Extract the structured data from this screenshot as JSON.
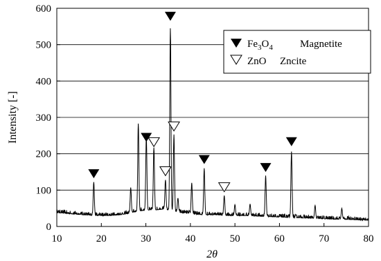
{
  "chart_data": {
    "type": "line",
    "xlabel": "2θ",
    "ylabel": "Intensity [-]",
    "xlim": [
      10,
      80
    ],
    "ylim": [
      0,
      600
    ],
    "x_ticks": [
      10,
      20,
      30,
      40,
      50,
      60,
      70,
      80
    ],
    "y_ticks": [
      0,
      100,
      200,
      300,
      400,
      500,
      600
    ],
    "grid": "horizontal",
    "legend_position": "top-right",
    "legend": [
      {
        "symbol": "filled-triangle-down",
        "name": "Fe3O4",
        "desc": "Magnetite"
      },
      {
        "symbol": "open-triangle-down",
        "name": "ZnO",
        "desc": "Zncite"
      }
    ],
    "series_color": "#000000",
    "baseline": [
      [
        10,
        38
      ],
      [
        12,
        36
      ],
      [
        14,
        34
      ],
      [
        16,
        32
      ],
      [
        18,
        30
      ],
      [
        20,
        30
      ],
      [
        22,
        30
      ],
      [
        24,
        32
      ],
      [
        26,
        35
      ],
      [
        28,
        42
      ],
      [
        30,
        45
      ],
      [
        32,
        45
      ],
      [
        34,
        48
      ],
      [
        36,
        42
      ],
      [
        38,
        38
      ],
      [
        40,
        35
      ],
      [
        42,
        33
      ],
      [
        44,
        32
      ],
      [
        46,
        32
      ],
      [
        48,
        30
      ],
      [
        50,
        30
      ],
      [
        52,
        30
      ],
      [
        54,
        29
      ],
      [
        56,
        28
      ],
      [
        58,
        27
      ],
      [
        60,
        26
      ],
      [
        62,
        25
      ],
      [
        64,
        24
      ],
      [
        66,
        23
      ],
      [
        68,
        22
      ],
      [
        70,
        21
      ],
      [
        72,
        20
      ],
      [
        74,
        20
      ],
      [
        76,
        19
      ],
      [
        78,
        18
      ],
      [
        80,
        17
      ]
    ],
    "peaks": [
      {
        "x": 18.3,
        "y": 122
      },
      {
        "x": 26.6,
        "y": 107
      },
      {
        "x": 28.3,
        "y": 283
      },
      {
        "x": 30.1,
        "y": 248
      },
      {
        "x": 31.8,
        "y": 217
      },
      {
        "x": 34.4,
        "y": 128
      },
      {
        "x": 35.5,
        "y": 545
      },
      {
        "x": 36.3,
        "y": 253
      },
      {
        "x": 37.2,
        "y": 78
      },
      {
        "x": 40.3,
        "y": 120
      },
      {
        "x": 43.1,
        "y": 160
      },
      {
        "x": 47.6,
        "y": 85
      },
      {
        "x": 50.0,
        "y": 60
      },
      {
        "x": 53.4,
        "y": 62
      },
      {
        "x": 56.9,
        "y": 140
      },
      {
        "x": 62.7,
        "y": 206
      },
      {
        "x": 68.0,
        "y": 58
      },
      {
        "x": 74.0,
        "y": 50
      }
    ],
    "markers": [
      {
        "type": "filled",
        "x": 18.3,
        "y": 145
      },
      {
        "type": "filled",
        "x": 30.1,
        "y": 245
      },
      {
        "type": "open",
        "x": 31.8,
        "y": 232
      },
      {
        "type": "open",
        "x": 34.4,
        "y": 152
      },
      {
        "type": "filled",
        "x": 35.5,
        "y": 578
      },
      {
        "type": "open",
        "x": 36.3,
        "y": 275
      },
      {
        "type": "filled",
        "x": 43.1,
        "y": 184
      },
      {
        "type": "open",
        "x": 47.6,
        "y": 108
      },
      {
        "type": "filled",
        "x": 56.9,
        "y": 162
      },
      {
        "type": "filled",
        "x": 62.7,
        "y": 233
      }
    ]
  }
}
